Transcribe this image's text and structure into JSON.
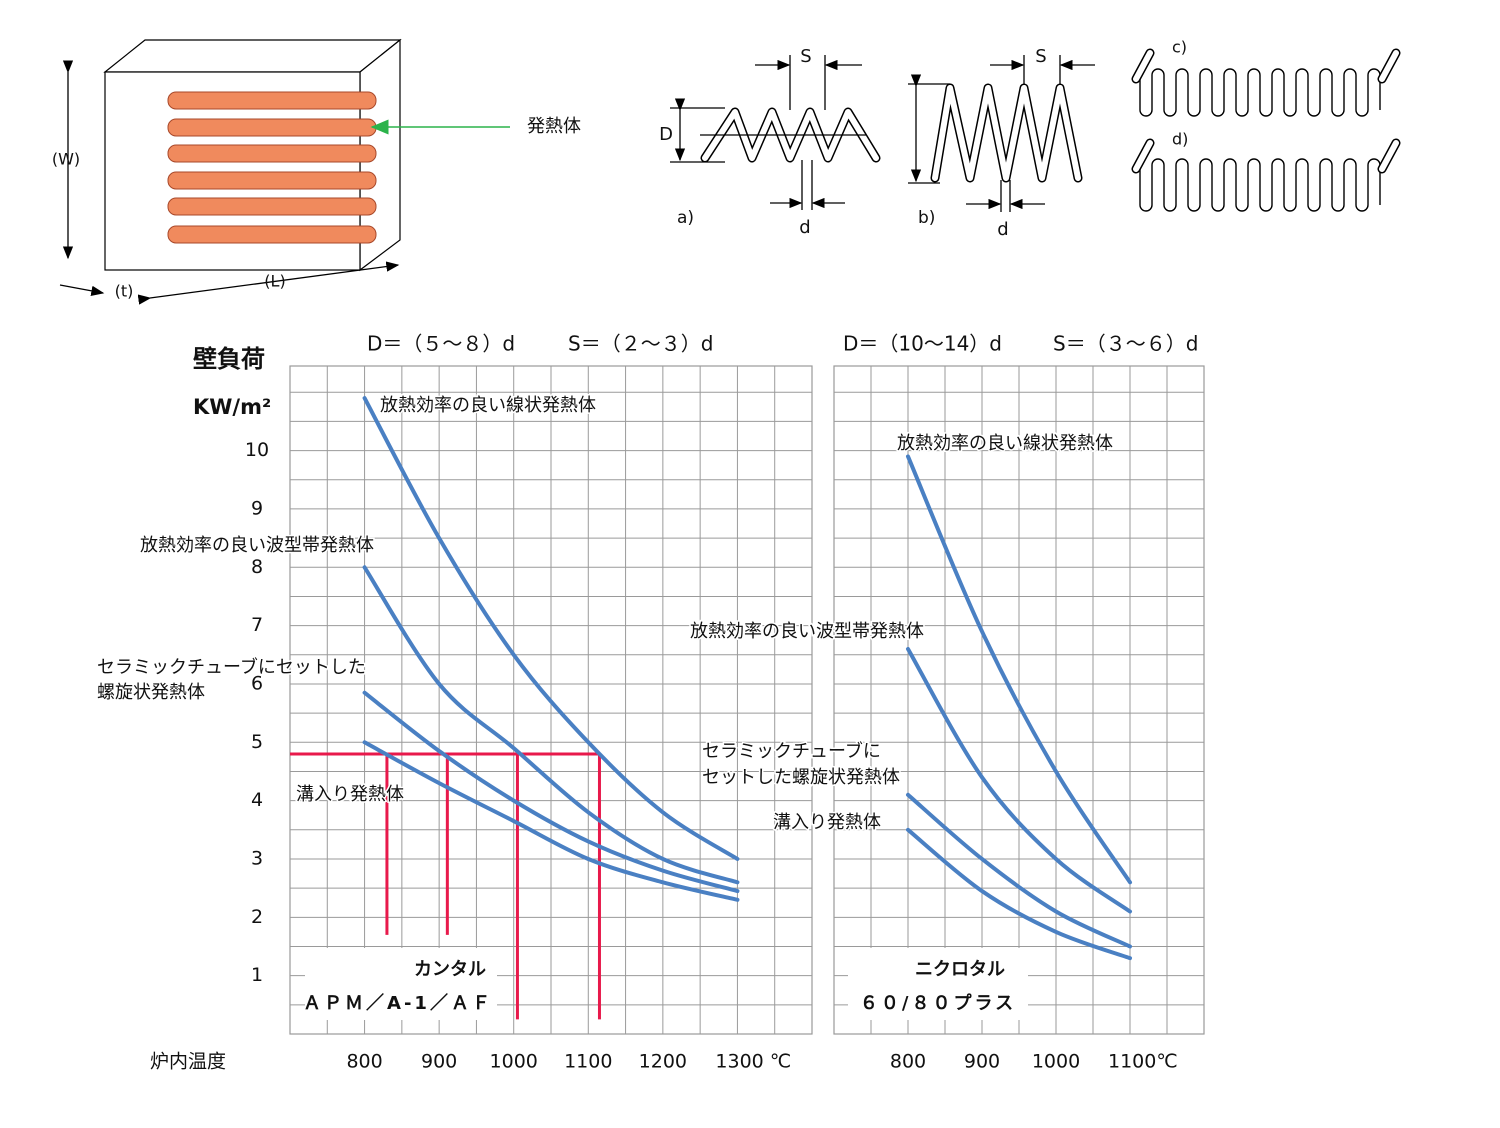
{
  "chart_data": [
    {
      "type": "line",
      "headers": [
        "D＝（５～８）d",
        "S＝（２～３）d"
      ],
      "y_label": [
        "壁負荷",
        "KW/m²"
      ],
      "x_label": "炉内温度",
      "x": [
        800,
        900,
        1000,
        1100,
        1200,
        1300
      ],
      "xlim": [
        700,
        1400
      ],
      "xticks": [
        800,
        900,
        1000,
        1100,
        1200,
        {
          "value": 1300,
          "label": "1300 ℃"
        }
      ],
      "ylim": [
        0,
        11.45
      ],
      "yticks": [
        1,
        2,
        3,
        4,
        5,
        6,
        7,
        8,
        9,
        10
      ],
      "grid": true,
      "xgrid_step": 50,
      "ygrid_step": 0.5,
      "series": [
        {
          "name": [
            "放熱効率の良い線状発熱体"
          ],
          "color": "#4a80c3",
          "values": [
            10.9,
            8.5,
            6.5,
            5.0,
            3.8,
            3.0
          ]
        },
        {
          "name": [
            "放熱効率の良い波型帯発熱体"
          ],
          "color": "#4a80c3",
          "values": [
            8.0,
            6.0,
            4.9,
            3.8,
            3.0,
            2.6
          ]
        },
        {
          "name": [
            "セラミックチューブにセットした",
            "螺旋状発熱体"
          ],
          "color": "#4a80c3",
          "values": [
            5.85,
            4.85,
            4.0,
            3.3,
            2.8,
            2.45
          ]
        },
        {
          "name": [
            "溝入り発熱体"
          ],
          "color": "#4a80c3",
          "values": [
            5.0,
            4.3,
            3.65,
            3.0,
            2.6,
            2.3
          ]
        }
      ],
      "reference_color": "#e8194b",
      "reference_lines": [
        {
          "x": [
            700,
            1115
          ],
          "y": [
            4.8,
            4.8
          ]
        },
        {
          "x": [
            830,
            830
          ],
          "y": [
            4.8,
            1.7
          ]
        },
        {
          "x": [
            911,
            911
          ],
          "y": [
            4.8,
            1.7
          ]
        },
        {
          "x": [
            1005,
            1005
          ],
          "y": [
            4.8,
            0.25
          ]
        },
        {
          "x": [
            1115,
            1115
          ],
          "y": [
            4.8,
            0.25
          ]
        }
      ],
      "box_labels": [
        "カンタル",
        "ＡＰＭ／A-1／ＡＦ"
      ]
    },
    {
      "type": "line",
      "headers": [
        "D＝（10～14）d",
        "S＝（３～６）d"
      ],
      "x": [
        800,
        900,
        1000,
        1100
      ],
      "xlim": [
        700,
        1200
      ],
      "xticks": [
        800,
        900,
        1000,
        {
          "value": 1100,
          "label": "1100℃"
        }
      ],
      "ylim": [
        0,
        11.45
      ],
      "grid": true,
      "xgrid_step": 50,
      "ygrid_step": 0.5,
      "series": [
        {
          "name": [
            "放熱効率の良い線状発熱体"
          ],
          "color": "#4a80c3",
          "values": [
            9.9,
            6.9,
            4.5,
            2.6
          ]
        },
        {
          "name": [
            "放熱効率の良い波型帯発熱体"
          ],
          "color": "#4a80c3",
          "values": [
            6.6,
            4.4,
            3.0,
            2.1
          ]
        },
        {
          "name": [
            "セラミックチューブに",
            "セットした螺旋状発熱体"
          ],
          "color": "#4a80c3",
          "values": [
            4.1,
            3.0,
            2.1,
            1.5
          ]
        },
        {
          "name": [
            "溝入り発熱体"
          ],
          "color": "#4a80c3",
          "values": [
            3.5,
            2.45,
            1.75,
            1.3
          ]
        }
      ],
      "box_labels": [
        "ニクロタル",
        "６０/８０プラス"
      ]
    }
  ],
  "diagram": {
    "box": {
      "W": "(W)",
      "t": "(t)",
      "L": "(L)",
      "heater": "発熱体"
    },
    "coil_a": {
      "S": "S",
      "D": "D",
      "d": "d",
      "label": "a)"
    },
    "coil_b": {
      "S": "S",
      "d": "d",
      "label": "b)"
    },
    "wave_c": "c)",
    "wave_d": "d)"
  }
}
